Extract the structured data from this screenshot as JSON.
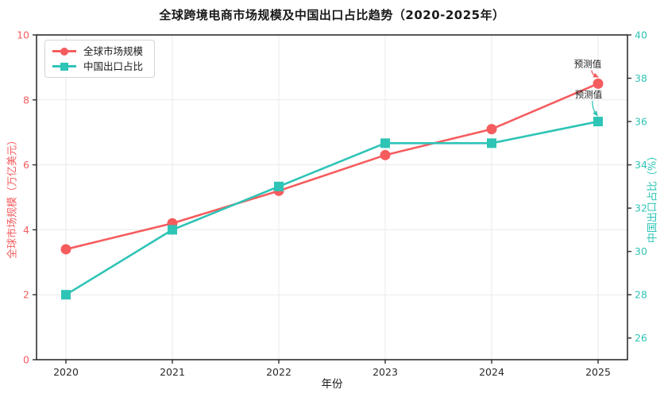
{
  "chart_data": {
    "type": "line",
    "title": "全球跨境电商市场规模及中国出口占比趋势（2020-2025年）",
    "xlabel": "年份",
    "categories": [
      "2020",
      "2021",
      "2022",
      "2023",
      "2024",
      "2025"
    ],
    "series": [
      {
        "name": "全球市场规模",
        "axis": "left",
        "color": "#f55c5e",
        "marker": "circle",
        "values": [
          3.4,
          4.2,
          5.2,
          6.3,
          7.1,
          8.5
        ]
      },
      {
        "name": "中国出口占比",
        "axis": "right",
        "color": "#2ec4b6",
        "marker": "square",
        "values": [
          28,
          31,
          33,
          35,
          35,
          36
        ]
      }
    ],
    "left_axis": {
      "label": "全球市场规模（万亿美元）",
      "ticks": [
        0,
        2,
        4,
        6,
        8,
        10
      ],
      "range": [
        0,
        10
      ],
      "color": "#f55c5e"
    },
    "right_axis": {
      "label": "中国出口占比（%）",
      "ticks": [
        26,
        28,
        30,
        32,
        34,
        36,
        38,
        40
      ],
      "range": [
        25,
        40
      ],
      "color": "#2ec4b6"
    },
    "grid": true,
    "legend_position": "upper-left",
    "annotations": [
      {
        "text": "预测值",
        "series": 0,
        "index": 5
      },
      {
        "text": "预测值",
        "series": 1,
        "index": 5
      }
    ],
    "colors": {
      "gridline": "#e9e9e9",
      "spine": "#2e2e2e",
      "x_tick_label": "#2a2a2a"
    }
  }
}
